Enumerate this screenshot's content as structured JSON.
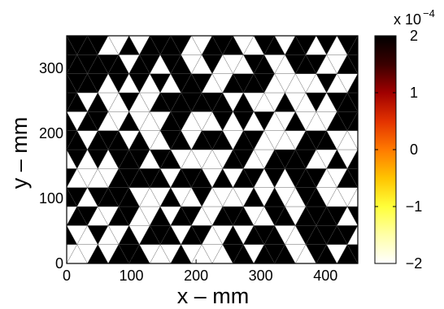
{
  "chart_data": {
    "type": "heatmap",
    "mesh": "triangular",
    "title": "",
    "xlabel": "x  –  mm",
    "ylabel": "y  –  mm",
    "xlim": [
      0,
      450
    ],
    "ylim": [
      0,
      350
    ],
    "xticks": [
      0,
      100,
      200,
      300,
      400
    ],
    "yticks": [
      0,
      100,
      200,
      300
    ],
    "colorbar": {
      "multiplier": "x 10",
      "exponent": "−4",
      "range": [
        -2,
        2
      ],
      "ticks": [
        2,
        1,
        0,
        -1,
        -2
      ],
      "tick_labels": [
        "2",
        "1",
        "0",
        "−1",
        "−2"
      ],
      "colormap_stops": [
        "#000000",
        "#3a0000",
        "#a00000",
        "#e33200",
        "#ff7a00",
        "#ffc400",
        "#ffff3a",
        "#ffffa8",
        "#ffffff"
      ]
    },
    "cell_values_note": "elements take values at the extremes: +2e-4 (black) or -2e-4 (white)",
    "nx": 14,
    "ny": 12,
    "pattern_seed": 7
  }
}
